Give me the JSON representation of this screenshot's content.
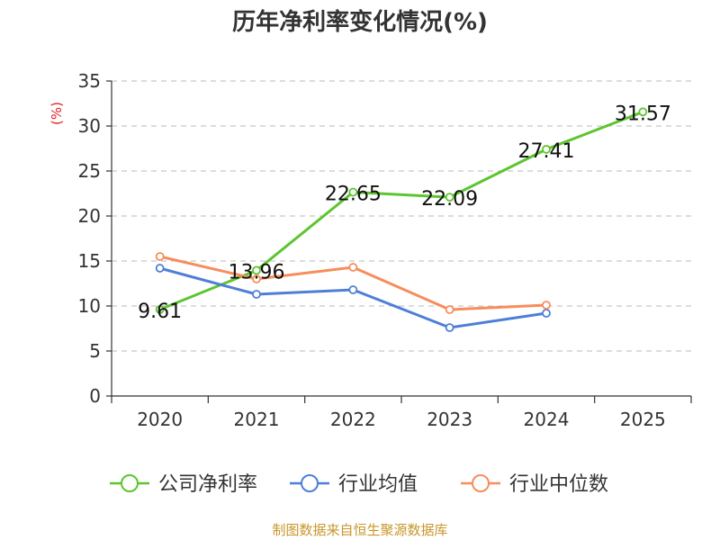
{
  "chart_data": {
    "type": "line",
    "title": "历年净利率变化情况(%)",
    "ylabel": "(%)",
    "xlabel": "",
    "ylim": [
      0,
      35
    ],
    "yticks": [
      0,
      5,
      10,
      15,
      20,
      25,
      30,
      35
    ],
    "categories": [
      "2020",
      "2021",
      "2022",
      "2023",
      "2024",
      "2025"
    ],
    "grid": true,
    "legend_position": "bottom",
    "series": [
      {
        "name": "公司净利率",
        "color": "#5cc52f",
        "values": [
          9.61,
          13.96,
          22.65,
          22.09,
          27.41,
          31.57
        ],
        "labels": [
          "9.61",
          "13.96",
          "22.65",
          "22.09",
          "27.41",
          "31.57"
        ]
      },
      {
        "name": "行业均值",
        "color": "#4e7fd6",
        "values": [
          14.2,
          11.3,
          11.8,
          7.6,
          9.2,
          null
        ]
      },
      {
        "name": "行业中位数",
        "color": "#f78d5c",
        "values": [
          15.5,
          13.0,
          14.3,
          9.6,
          10.1,
          null
        ]
      }
    ],
    "source": "制图数据来自恒生聚源数据库"
  }
}
